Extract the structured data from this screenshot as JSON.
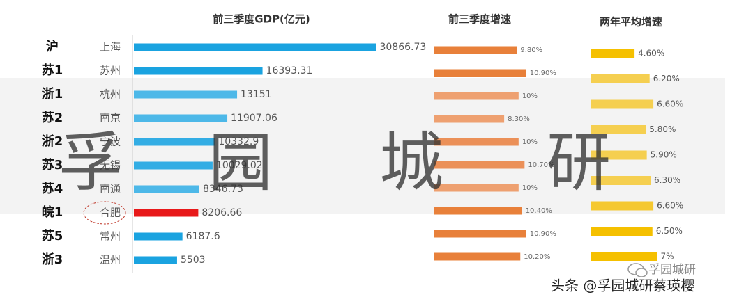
{
  "row_labels": [
    "沪",
    "苏1",
    "浙1",
    "苏2",
    "浙2",
    "苏3",
    "苏4",
    "皖1",
    "苏5",
    "浙3"
  ],
  "chart_data": [
    {
      "type": "bar",
      "orientation": "horizontal",
      "title": "前三季度GDP(亿元)",
      "categories": [
        "上海",
        "苏州",
        "杭州",
        "南京",
        "宁波",
        "无锡",
        "南通",
        "合肥",
        "常州",
        "温州"
      ],
      "values": [
        30866.73,
        16393.31,
        13151,
        11907.06,
        10332.9,
        10029.02,
        8346.73,
        8206.66,
        6187.6,
        5503
      ],
      "colors": [
        "#1aa3e0",
        "#1aa3e0",
        "#4db8e8",
        "#4db8e8",
        "#33ade4",
        "#33ade4",
        "#4db8e8",
        "#e8191a",
        "#1aa3e0",
        "#1aa3e0"
      ],
      "xlim": [
        0,
        31000
      ]
    },
    {
      "type": "bar",
      "orientation": "horizontal",
      "title": "前三季度增速",
      "values": [
        9.8,
        10.9,
        10,
        8.3,
        10,
        10.7,
        10,
        10.4,
        10.9,
        10.2
      ],
      "value_labels": [
        "9.80%",
        "10.90%",
        "10%",
        "8.30%",
        "10%",
        "10.70%",
        "10%",
        "10.40%",
        "10.90%",
        "10.20%"
      ],
      "colors": [
        "#e8803a",
        "#e8803a",
        "#eea070",
        "#eea070",
        "#eb9058",
        "#eb9058",
        "#eea070",
        "#e8803a",
        "#e8803a",
        "#e8803a"
      ],
      "xlim": [
        0,
        11
      ]
    },
    {
      "type": "bar",
      "orientation": "horizontal",
      "title": "两年平均增速",
      "values": [
        4.6,
        6.2,
        6.6,
        5.8,
        5.9,
        6.3,
        6.6,
        6.5,
        7
      ],
      "value_labels": [
        "4.60%",
        "6.20%",
        "6.60%",
        "5.80%",
        "5.90%",
        "6.30%",
        "6.60%",
        "6.50%",
        "7%"
      ],
      "colors": [
        "#f5c000",
        "#f5cf50",
        "#f5cf50",
        "#f5cf50",
        "#f5cf50",
        "#f5cf50",
        "#f5c830",
        "#f5c000",
        "#f5c000"
      ],
      "xlim": [
        0,
        8
      ]
    }
  ],
  "watermark": [
    "孚",
    "园",
    "城",
    "研"
  ],
  "footer": "头条 @孚园城研蔡瑛樱",
  "wechat": "孚园城研"
}
